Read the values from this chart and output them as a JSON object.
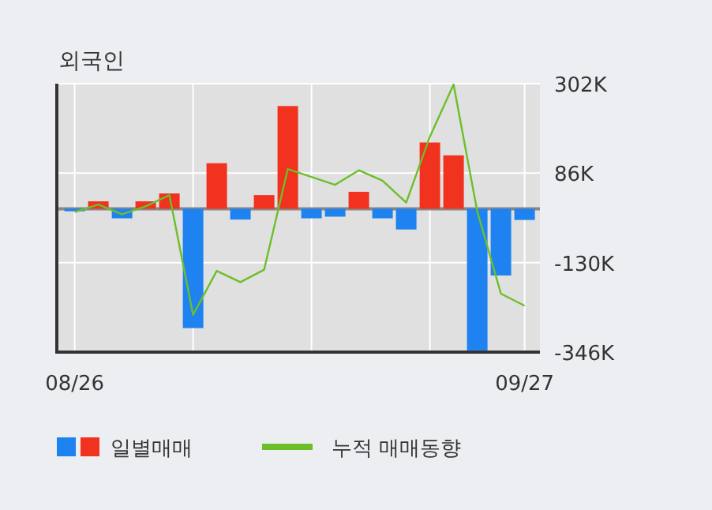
{
  "chart_data": {
    "type": "bar",
    "title": "외국인",
    "categories": [
      "08/26",
      null,
      null,
      null,
      null,
      null,
      null,
      null,
      null,
      null,
      null,
      null,
      null,
      null,
      null,
      null,
      null,
      null,
      null,
      "09/27"
    ],
    "series": [
      {
        "name": "일별매매",
        "values": [
          -6000,
          18000,
          -23000,
          18000,
          37000,
          -288000,
          110000,
          -26000,
          33000,
          248000,
          -23000,
          -19000,
          41000,
          -23000,
          -50000,
          160000,
          129000,
          -342000,
          -161000,
          -27000
        ],
        "colors": [
          "#1e82f0",
          "#f0321e",
          "#1e82f0",
          "#f0321e",
          "#f0321e",
          "#1e82f0",
          "#f0321e",
          "#1e82f0",
          "#f0321e",
          "#f0321e",
          "#1e82f0",
          "#1e82f0",
          "#f0321e",
          "#1e82f0",
          "#1e82f0",
          "#f0321e",
          "#f0321e",
          "#1e82f0",
          "#1e82f0",
          "#1e82f0"
        ]
      },
      {
        "name": "누적 매매동향",
        "type": "line",
        "color": "#6cbf2a",
        "values": [
          -8000,
          10000,
          -13000,
          6000,
          33000,
          -256000,
          -150000,
          -177000,
          -147000,
          96000,
          77000,
          58000,
          93000,
          68000,
          15000,
          174000,
          300000,
          -6000,
          -205000,
          -234000
        ]
      }
    ],
    "ylim": [
      -346000,
      302000
    ],
    "yticks": [
      {
        "value": 302000,
        "label": "302K"
      },
      {
        "value": 86000,
        "label": "86K"
      },
      {
        "value": -130000,
        "label": "-130K"
      },
      {
        "value": -346000,
        "label": "-346K"
      }
    ],
    "grid": true,
    "legend": "bottom",
    "marker": "none"
  }
}
